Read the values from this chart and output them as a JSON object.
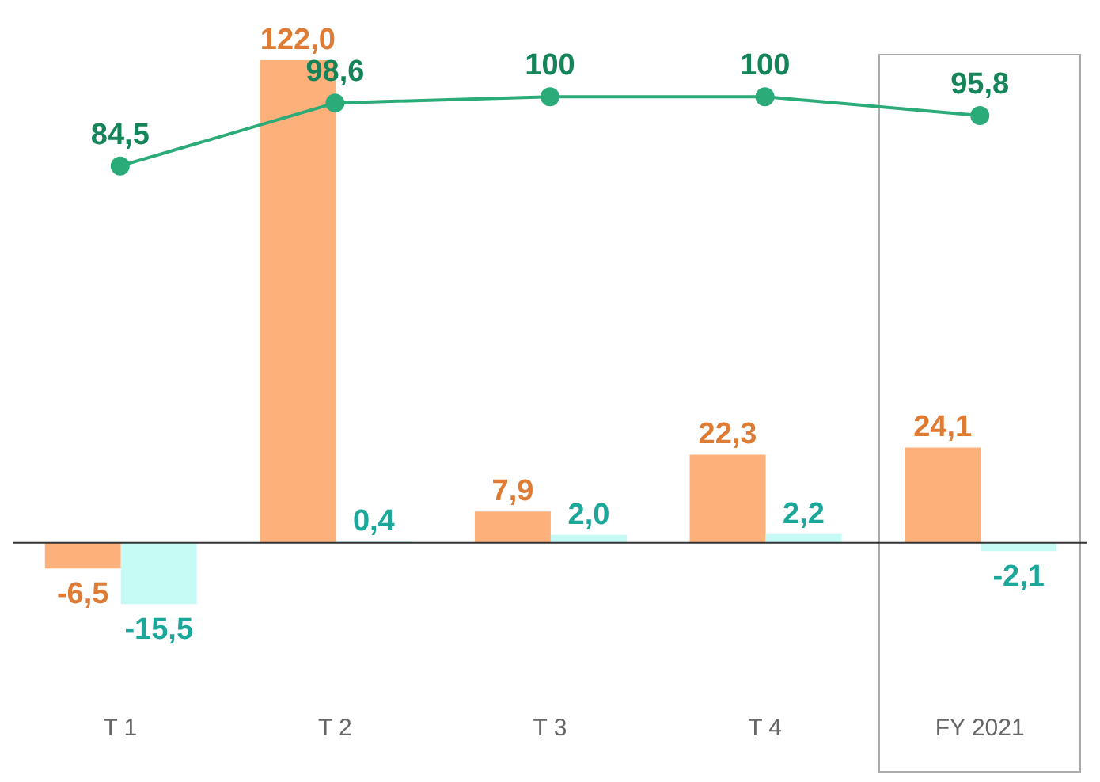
{
  "chart_data": {
    "type": "bar",
    "categories": [
      "T 1",
      "T 2",
      "T 3",
      "T 4",
      "FY 2021"
    ],
    "series": [
      {
        "color": "#fdb07a",
        "values": [
          -6.5,
          122.0,
          7.9,
          22.3,
          24.1
        ],
        "value_labels": [
          "-6,5",
          "122,0",
          "7,9",
          "22,3",
          "24,1"
        ]
      },
      {
        "color": "#c5faf5",
        "values": [
          -15.5,
          0.4,
          2.0,
          2.2,
          -2.1
        ],
        "value_labels": [
          "-15,5",
          "0,4",
          "2,0",
          "2,2",
          "-2,1"
        ]
      },
      {
        "type": "line",
        "axis": "y2",
        "color": "#2bab78",
        "values": [
          84.5,
          98.6,
          100,
          100,
          95.8
        ],
        "value_labels": [
          "84,5",
          "98,6",
          "100",
          "100",
          "95,8"
        ]
      }
    ],
    "legend": false,
    "grid": false,
    "marker": "circle",
    "line_style": "solid",
    "tick_labels": "x"
  }
}
